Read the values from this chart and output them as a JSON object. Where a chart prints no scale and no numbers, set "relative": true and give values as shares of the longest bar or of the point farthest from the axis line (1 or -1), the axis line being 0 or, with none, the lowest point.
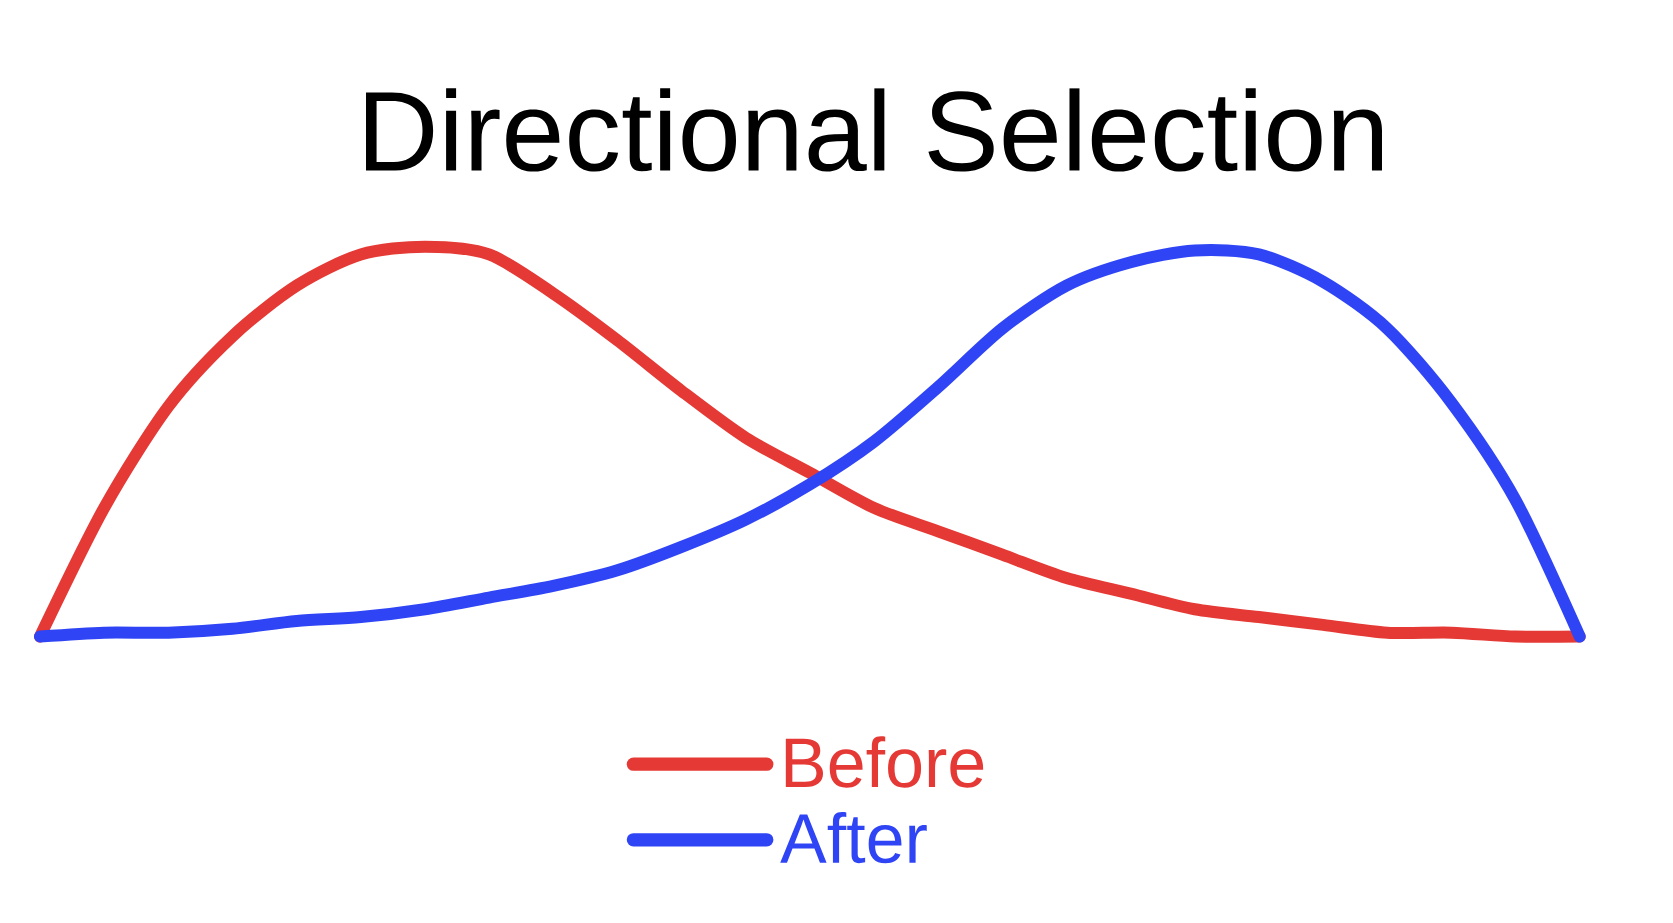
{
  "chart_data": {
    "type": "line",
    "title": "Directional Selection",
    "relative": true,
    "legend": "bottom",
    "line_style": "solid",
    "marker": "none",
    "categories": [
      null,
      null,
      null,
      null,
      null,
      null,
      null,
      null,
      null,
      null,
      null,
      null,
      null,
      null,
      null,
      null,
      null,
      null,
      null,
      null,
      null,
      null,
      null,
      null,
      null
    ],
    "series": [
      {
        "name": "Before",
        "color": "#e53935",
        "values": [
          0,
          0.33,
          0.59,
          0.77,
          0.9,
          0.98,
          1,
          0.98,
          0.88,
          0.76,
          0.63,
          0.51,
          0.42,
          0.33,
          0.27,
          0.21,
          0.15,
          0.11,
          0.07,
          0.05,
          0.03,
          0.01,
          0.01,
          0,
          0
        ]
      },
      {
        "name": "After",
        "color": "#2f45f5",
        "values": [
          0,
          0.01,
          0.01,
          0.02,
          0.04,
          0.05,
          0.07,
          0.1,
          0.13,
          0.17,
          0.23,
          0.3,
          0.39,
          0.5,
          0.64,
          0.79,
          0.9,
          0.96,
          0.99,
          0.98,
          0.91,
          0.79,
          0.6,
          0.35,
          0
        ]
      }
    ]
  }
}
